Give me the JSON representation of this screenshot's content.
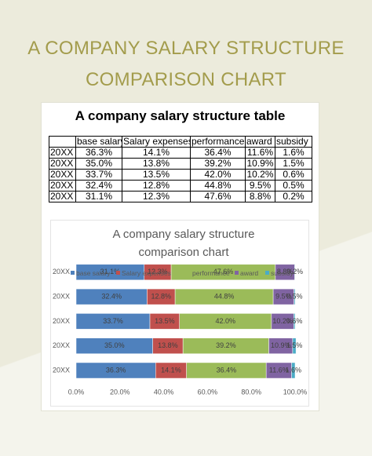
{
  "header": {
    "title": "A COMPANY SALARY STRUCTURE COMPARISON CHART"
  },
  "table": {
    "title": "A company salary structure table",
    "columns": [
      "base salary",
      "Salary expenses",
      "performance",
      "award",
      "subsidy"
    ],
    "rows": [
      [
        "20XX",
        "36.3%",
        "14.1%",
        "36.4%",
        "11.6%",
        "1.6%"
      ],
      [
        "20XX",
        "35.0%",
        "13.8%",
        "39.2%",
        "10.9%",
        "1.5%"
      ],
      [
        "20XX",
        "33.7%",
        "13.5%",
        "42.0%",
        "10.2%",
        "0.6%"
      ],
      [
        "20XX",
        "32.4%",
        "12.8%",
        "44.8%",
        "9.5%",
        "0.5%"
      ],
      [
        "20XX",
        "31.1%",
        "12.3%",
        "47.6%",
        "8.8%",
        "0.2%"
      ]
    ]
  },
  "chart_data": {
    "type": "bar",
    "orientation": "horizontal",
    "stacked": true,
    "title": "A company salary structure comparison chart",
    "categories": [
      "20XX",
      "20XX",
      "20XX",
      "20XX",
      "20XX"
    ],
    "series": [
      {
        "name": "base salary",
        "color": "#4f81bd",
        "values": [
          36.3,
          35.0,
          33.7,
          32.4,
          31.1
        ],
        "value_labels": [
          "36.3%",
          "35.0%",
          "33.7%",
          "32.4%",
          "31.1%"
        ]
      },
      {
        "name": "Salary expenses",
        "color": "#c0504d",
        "values": [
          14.1,
          13.8,
          13.5,
          12.8,
          12.3
        ],
        "value_labels": [
          "14.1%",
          "13.8%",
          "13.5%",
          "12.8%",
          "12.3%"
        ]
      },
      {
        "name": "performance",
        "color": "#9bbb59",
        "values": [
          36.4,
          39.2,
          42.0,
          44.8,
          47.6
        ],
        "value_labels": [
          "36.4%",
          "39.2%",
          "42.0%",
          "44.8%",
          "47.6%"
        ]
      },
      {
        "name": "award",
        "color": "#8064a2",
        "values": [
          11.6,
          10.9,
          10.2,
          9.5,
          8.8
        ],
        "value_labels": [
          "11.6%",
          "10.9%",
          "10.2%",
          "9.5%",
          "8.8%"
        ]
      },
      {
        "name": "subsidy",
        "color": "#4bacc6",
        "values": [
          1.6,
          1.5,
          0.6,
          0.5,
          0.2
        ],
        "value_labels": [
          "1.6%",
          "1.5%",
          "0.6%",
          "0.5%",
          "0.2%"
        ]
      }
    ],
    "xlim": [
      0,
      100
    ],
    "xticks": [
      {
        "value": 0,
        "label": "0.0%"
      },
      {
        "value": 20,
        "label": "20.0%"
      },
      {
        "value": 40,
        "label": "40.0%"
      },
      {
        "value": 60,
        "label": "60.0%"
      },
      {
        "value": 80,
        "label": "80.0%"
      },
      {
        "value": 100,
        "label": "100.0%"
      }
    ],
    "legend": "top"
  }
}
